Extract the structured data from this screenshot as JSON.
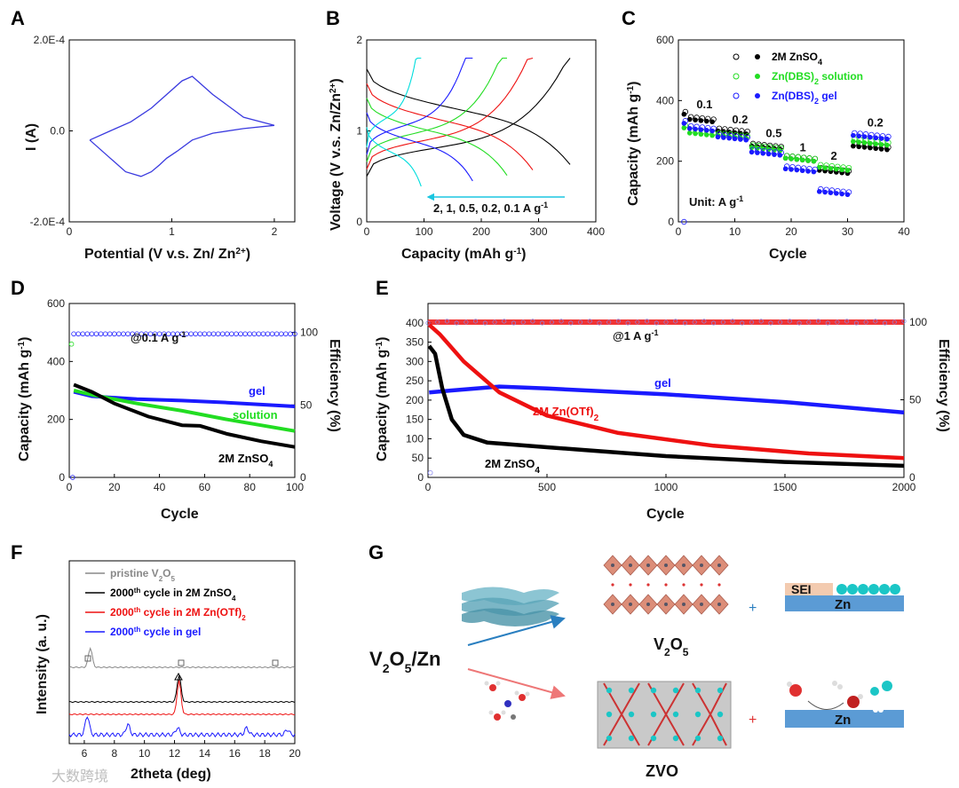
{
  "colors": {
    "black": "#000000",
    "green": "#22dd22",
    "blue": "#1a1aff",
    "red": "#ee1111",
    "gray": "#888888",
    "cv": "#3a3adf"
  },
  "chart_data": [
    {
      "panel": "A",
      "type": "line",
      "xlabel_main": "Potential (V v.s. Zn/ Zn",
      "xlabel_sup": "2+",
      "xlabel_end": ")",
      "ylabel": "I (A)",
      "xlim": [
        0,
        2.2
      ],
      "ylim": [
        -0.0002,
        0.0002
      ],
      "xticks": [
        0,
        1,
        2
      ],
      "yticks": [
        "2.0E-4",
        "0.0",
        "-2.0E-4"
      ],
      "series": [
        {
          "points": [
            [
              0.2,
              -2e-05
            ],
            [
              0.4,
              -6e-05
            ],
            [
              0.55,
              -9e-05
            ],
            [
              0.7,
              -0.0001
            ],
            [
              0.8,
              -9e-05
            ],
            [
              0.88,
              -7.5e-05
            ],
            [
              0.95,
              -6e-05
            ],
            [
              1.05,
              -4.5e-05
            ],
            [
              1.2,
              -2e-05
            ],
            [
              1.4,
              -5e-06
            ],
            [
              1.7,
              5e-06
            ],
            [
              2.0,
              1.2e-05
            ],
            [
              1.7,
              3e-05
            ],
            [
              1.4,
              8e-05
            ],
            [
              1.25,
              0.00011
            ],
            [
              1.2,
              0.00012
            ],
            [
              1.1,
              0.00011
            ],
            [
              0.95,
              8e-05
            ],
            [
              0.8,
              5e-05
            ],
            [
              0.6,
              2e-05
            ],
            [
              0.4,
              0.0
            ],
            [
              0.2,
              -2e-05
            ]
          ]
        }
      ]
    },
    {
      "panel": "B",
      "type": "line",
      "xlabel_main": "Capacity (mAh g",
      "xlabel_sup": "-1",
      "xlabel_end": ")",
      "ylabel": "Voltage (V v.s. Zn/Zn2+)",
      "ylabel_main": "Voltage (V v.s. Zn/Zn",
      "ylabel_sup": "2+",
      "ylabel_end": ")",
      "xlim": [
        0,
        400
      ],
      "ylim": [
        0,
        2
      ],
      "xticks": [
        0,
        100,
        200,
        300,
        400
      ],
      "yticks": [
        0,
        1,
        2
      ],
      "annotation": "2, 1, 0.5, 0.2, 0.1 A g-1",
      "annotation_main": "2, 1, 0.5, 0.2, 0.1 A g",
      "annotation_sup": "-1",
      "series": [
        {
          "rate": "0.1",
          "color": "#000000",
          "qmax": 355
        },
        {
          "rate": "0.2",
          "color": "#ee1111",
          "qmax": 290
        },
        {
          "rate": "0.5",
          "color": "#22dd22",
          "qmax": 245
        },
        {
          "rate": "1",
          "color": "#1a1aff",
          "qmax": 185
        },
        {
          "rate": "2",
          "color": "#00dddd",
          "qmax": 95
        }
      ]
    },
    {
      "panel": "C",
      "type": "scatter",
      "xlabel": "Cycle",
      "ylabel_main": "Capacity (mAh g",
      "ylabel_sup": "-1",
      "ylabel_end": ")",
      "xlim": [
        0,
        40
      ],
      "ylim": [
        0,
        600
      ],
      "xticks": [
        0,
        10,
        20,
        30,
        40
      ],
      "yticks": [
        0,
        200,
        400,
        600
      ],
      "rate_labels": [
        "0.1",
        "0.2",
        "0.5",
        "1",
        "2",
        "0.2"
      ],
      "unit_main": "Unit: A g",
      "unit_sup": "-1",
      "legend": [
        {
          "name_main": "2M ZnSO",
          "name_sub": "4",
          "name_end": "",
          "color": "#000000"
        },
        {
          "name_main": "Zn(DBS)",
          "name_sub": "2",
          "name_end": " solution",
          "color": "#22dd22"
        },
        {
          "name_main": "Zn(DBS)",
          "name_sub": "2",
          "name_end": " gel",
          "color": "#1a1aff"
        }
      ],
      "series": [
        {
          "color": "#000000",
          "steps": [
            340,
            300,
            250,
            210,
            170,
            250
          ]
        },
        {
          "color": "#22dd22",
          "steps": [
            295,
            285,
            245,
            210,
            180,
            265
          ]
        },
        {
          "color": "#1a1aff",
          "steps": [
            310,
            280,
            230,
            175,
            100,
            285
          ]
        }
      ]
    },
    {
      "panel": "D",
      "type": "line",
      "xlabel": "Cycle",
      "ylabel_main": "Capacity (mAh g",
      "ylabel_sup": "-1",
      "ylabel_end": ")",
      "y2label": "Efficiency (%)",
      "xlim": [
        0,
        100
      ],
      "ylim": [
        0,
        600
      ],
      "y2lim": [
        0,
        120
      ],
      "xticks": [
        0,
        20,
        40,
        60,
        80,
        100
      ],
      "yticks": [
        0,
        200,
        400,
        600
      ],
      "y2ticks": [
        0,
        50,
        100
      ],
      "rate_main": "@0.1 A g",
      "rate_sup": "-1",
      "labels": [
        {
          "text": "gel",
          "color": "#1a1aff"
        },
        {
          "text": "solution",
          "color": "#22dd22"
        },
        {
          "text_main": "2M ZnSO",
          "text_sub": "4",
          "color": "#000000"
        }
      ],
      "series": [
        {
          "name": "gel",
          "color": "#1a1aff",
          "points": [
            [
              2,
              295
            ],
            [
              10,
              280
            ],
            [
              30,
              270
            ],
            [
              50,
              265
            ],
            [
              70,
              258
            ],
            [
              100,
              245
            ]
          ]
        },
        {
          "name": "solution",
          "color": "#22dd22",
          "points": [
            [
              2,
              300
            ],
            [
              10,
              285
            ],
            [
              30,
              255
            ],
            [
              50,
              230
            ],
            [
              70,
              200
            ],
            [
              100,
              160
            ]
          ]
        },
        {
          "name": "2M ZnSO4",
          "color": "#000000",
          "points": [
            [
              2,
              320
            ],
            [
              10,
              295
            ],
            [
              20,
              255
            ],
            [
              35,
              210
            ],
            [
              50,
              180
            ],
            [
              58,
              178
            ],
            [
              70,
              150
            ],
            [
              85,
              125
            ],
            [
              100,
              105
            ]
          ]
        }
      ]
    },
    {
      "panel": "E",
      "type": "line",
      "xlabel": "Cycle",
      "ylabel_main": "Capacity (mAh g",
      "ylabel_sup": "-1",
      "ylabel_end": ")",
      "y2label": "Efficiency (%)",
      "xlim": [
        0,
        2000
      ],
      "ylim": [
        0,
        450
      ],
      "y2lim": [
        0,
        112
      ],
      "xticks": [
        0,
        500,
        1000,
        1500,
        2000
      ],
      "yticks": [
        0,
        50,
        100,
        150,
        200,
        250,
        300,
        350,
        400
      ],
      "y2ticks": [
        0,
        50,
        100
      ],
      "rate_main": "@1 A g",
      "rate_sup": "-1",
      "labels": [
        {
          "text": "gel",
          "color": "#1a1aff"
        },
        {
          "text_main": "2M Zn(OTf)",
          "text_sub": "2",
          "color": "#ee1111"
        },
        {
          "text_main": "2M ZnSO",
          "text_sub": "4",
          "color": "#000000"
        }
      ],
      "series": [
        {
          "name": "gel",
          "color": "#1a1aff",
          "points": [
            [
              5,
              220
            ],
            [
              100,
              225
            ],
            [
              300,
              235
            ],
            [
              500,
              230
            ],
            [
              1000,
              215
            ],
            [
              1500,
              195
            ],
            [
              2000,
              168
            ]
          ]
        },
        {
          "name": "2M Zn(OTf)2",
          "color": "#ee1111",
          "points": [
            [
              5,
              395
            ],
            [
              50,
              370
            ],
            [
              150,
              300
            ],
            [
              300,
              220
            ],
            [
              500,
              160
            ],
            [
              800,
              115
            ],
            [
              1200,
              82
            ],
            [
              1600,
              62
            ],
            [
              2000,
              50
            ]
          ]
        },
        {
          "name": "2M ZnSO4",
          "color": "#000000",
          "points": [
            [
              5,
              340
            ],
            [
              30,
              320
            ],
            [
              60,
              230
            ],
            [
              100,
              150
            ],
            [
              150,
              110
            ],
            [
              250,
              90
            ],
            [
              500,
              78
            ],
            [
              1000,
              55
            ],
            [
              1500,
              40
            ],
            [
              2000,
              30
            ]
          ]
        }
      ]
    },
    {
      "panel": "F",
      "type": "line",
      "xlabel": "2theta (deg)",
      "ylabel": "Intensity (a. u.)",
      "xlim": [
        5,
        20
      ],
      "xticks": [
        6,
        8,
        10,
        12,
        14,
        16,
        18,
        20
      ],
      "legend": [
        {
          "main": "pristine V",
          "sub": "2",
          "mid": "O",
          "sub2": "5",
          "color": "#888888"
        },
        {
          "main": "2000",
          "sup": "th",
          "rest": " cycle in 2M ZnSO",
          "sub": "4",
          "color": "#000000"
        },
        {
          "main": "2000",
          "sup": "th",
          "rest": " cycle in 2M Zn(OTf)",
          "sub": "2",
          "color": "#ee1111"
        },
        {
          "main": "2000",
          "sup": "th",
          "rest": " cycle in gel",
          "color": "#1a1aff"
        }
      ],
      "series": [
        {
          "color": "#888888",
          "peaks": [
            [
              6.4,
              22
            ]
          ]
        },
        {
          "color": "#000000",
          "peaks": [
            [
              12.3,
              30
            ]
          ]
        },
        {
          "color": "#ee1111",
          "peaks": [
            [
              12.3,
              38
            ]
          ]
        },
        {
          "color": "#1a1aff",
          "peaks": [
            [
              6.2,
              22
            ],
            [
              8.9,
              12
            ],
            [
              12.2,
              8
            ],
            [
              16.8,
              8
            ],
            [
              19.5,
              6
            ]
          ]
        }
      ]
    }
  ],
  "panel_g": {
    "left_label_main": "V",
    "left_sub1": "2",
    "left_mid": "O",
    "left_sub2": "5",
    "left_end": "/Zn",
    "top_label_main": "V",
    "top_sub1": "2",
    "top_mid": "O",
    "top_sub2": "5",
    "bottom_label": "ZVO",
    "sei_label": "SEI",
    "zn_label_top": "Zn",
    "zn_label_bottom": "Zn",
    "plus": "+"
  },
  "watermark": "大数跨境"
}
